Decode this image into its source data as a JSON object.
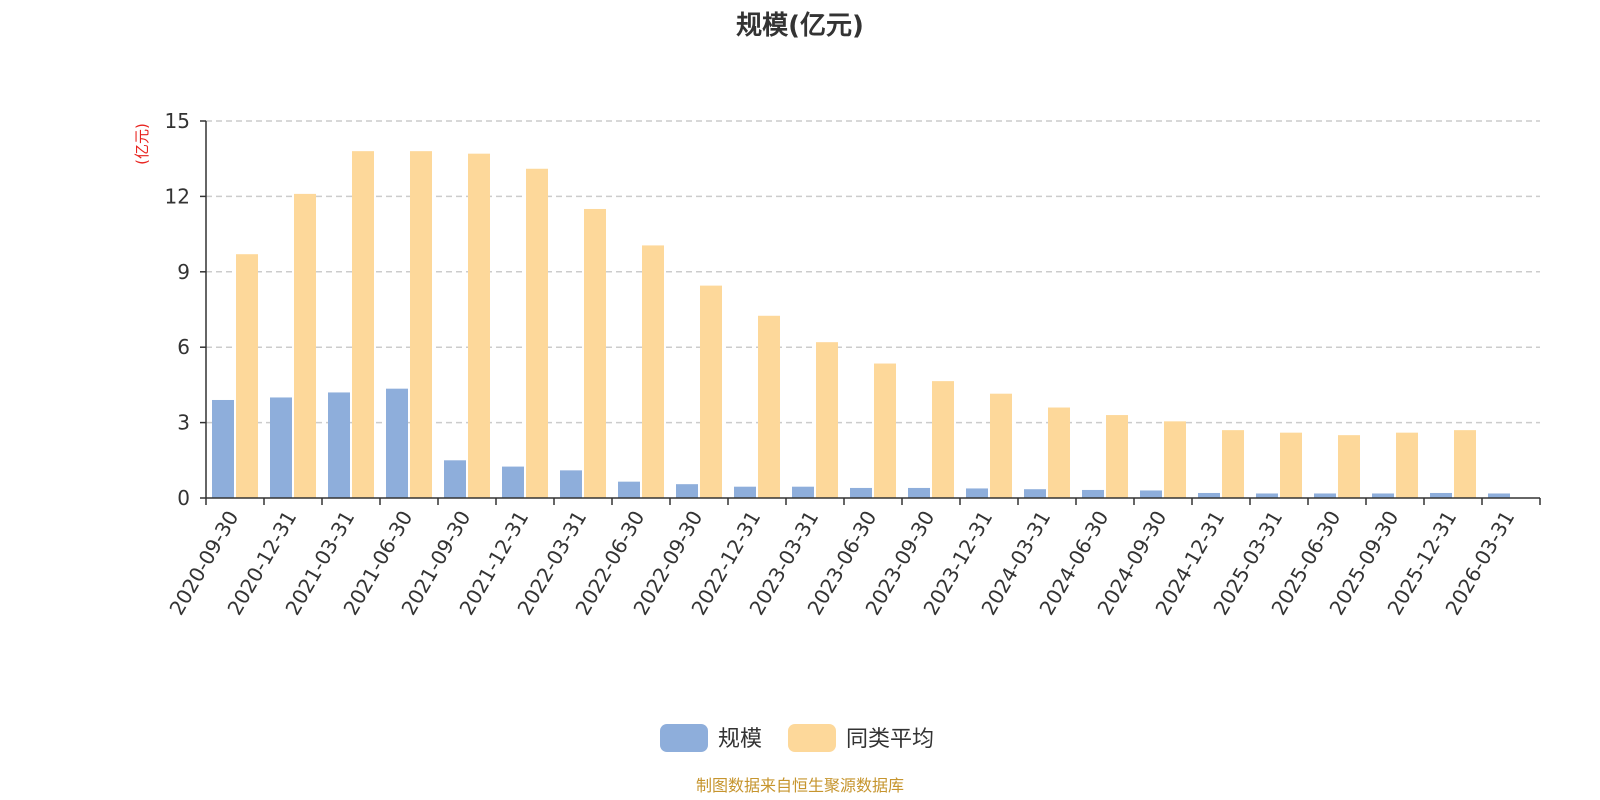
{
  "chart_data": {
    "type": "bar",
    "title": "规模(亿元)",
    "ylabel": "(亿元)",
    "ylim": [
      0,
      15
    ],
    "yticks": [
      0,
      3,
      6,
      9,
      12,
      15
    ],
    "grid": true,
    "legend_position": "bottom-center",
    "categories": [
      "2020-09-30",
      "2020-12-31",
      "2021-03-31",
      "2021-06-30",
      "2021-09-30",
      "2021-12-31",
      "2022-03-31",
      "2022-06-30",
      "2022-09-30",
      "2022-12-31",
      "2023-03-31",
      "2023-06-30",
      "2023-09-30",
      "2023-12-31",
      "2024-03-31",
      "2024-06-30",
      "2024-09-30",
      "2024-12-31",
      "2025-03-31",
      "2025-06-30",
      "2025-09-30",
      "2025-12-31",
      "2026-03-31"
    ],
    "series": [
      {
        "name": "规模",
        "color": "#8eaedb",
        "values": [
          3.9,
          4.0,
          4.2,
          4.35,
          1.5,
          1.25,
          1.1,
          0.65,
          0.55,
          0.45,
          0.45,
          0.4,
          0.4,
          0.38,
          0.35,
          0.32,
          0.3,
          0.2,
          0.18,
          0.18,
          0.18,
          0.2,
          0.18
        ]
      },
      {
        "name": "同类平均",
        "color": "#fdd89a",
        "values": [
          9.7,
          12.1,
          13.8,
          13.8,
          13.7,
          13.1,
          11.5,
          10.05,
          8.45,
          7.25,
          6.2,
          5.35,
          4.65,
          4.15,
          3.6,
          3.3,
          3.05,
          2.7,
          2.6,
          2.5,
          2.6,
          2.7,
          null
        ]
      }
    ],
    "source": "制图数据来自恒生聚源数据库"
  }
}
